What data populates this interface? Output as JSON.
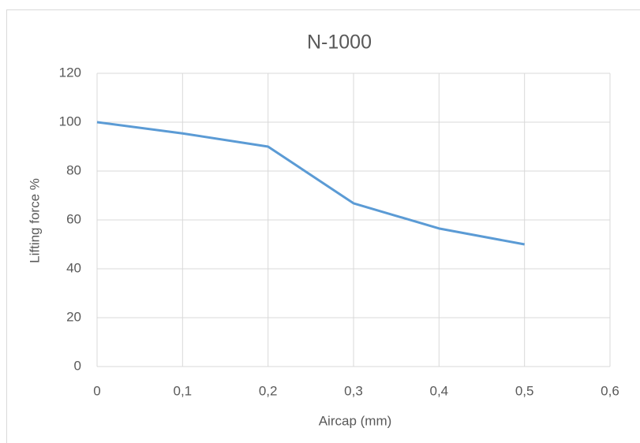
{
  "chart_data": {
    "type": "line",
    "title": "N-1000",
    "x_label": "Aircap (mm)",
    "y_label": "Lifting force %",
    "x": [
      0,
      0.1,
      0.2,
      0.3,
      0.4,
      0.5
    ],
    "series": [
      {
        "name": "N-1000",
        "color": "#5b9bd5",
        "values": [
          100,
          95.4,
          90,
          66.8,
          56.5,
          50
        ]
      }
    ],
    "xlim": [
      0,
      0.6
    ],
    "xticks": [
      0,
      {
        "value": 0.1,
        "label": "0,1"
      },
      {
        "value": 0.2,
        "label": "0,2"
      },
      {
        "value": 0.3,
        "label": "0,3"
      },
      {
        "value": 0.4,
        "label": "0,4"
      },
      {
        "value": 0.5,
        "label": "0,5"
      },
      {
        "value": 0.6,
        "label": "0,6"
      }
    ],
    "ylim": [
      0,
      120
    ],
    "yticks": [
      0,
      20,
      40,
      60,
      80,
      100,
      120
    ],
    "grid": true
  }
}
